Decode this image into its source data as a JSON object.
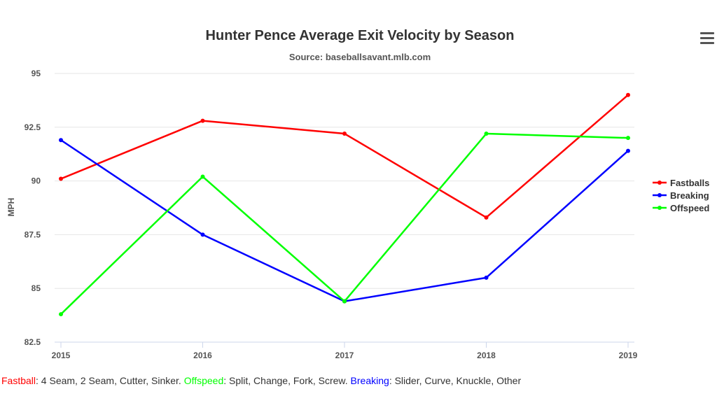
{
  "chart_data": {
    "type": "line",
    "title": "Hunter Pence Average Exit Velocity by Season",
    "subtitle": "Source: baseballsavant.mlb.com",
    "xlabel": "",
    "ylabel": "MPH",
    "categories": [
      "2015",
      "2016",
      "2017",
      "2018",
      "2019"
    ],
    "ylim": [
      82.5,
      95
    ],
    "yticks": [
      82.5,
      85,
      87.5,
      90,
      92.5,
      95
    ],
    "ytick_labels": [
      "82.5",
      "85",
      "87.5",
      "90",
      "92.5",
      "95"
    ],
    "grid": true,
    "legend_position": "right",
    "series": [
      {
        "name": "Fastballs",
        "color": "#ff0000",
        "values": [
          90.1,
          92.8,
          92.2,
          88.3,
          94.0
        ]
      },
      {
        "name": "Breaking",
        "color": "#0000ff",
        "values": [
          91.9,
          87.5,
          84.4,
          85.5,
          91.4
        ]
      },
      {
        "name": "Offspeed",
        "color": "#00ff00",
        "values": [
          83.8,
          90.2,
          84.4,
          92.2,
          92.0
        ]
      }
    ]
  },
  "menu_icon": "hamburger-menu-icon",
  "footnote": {
    "fastball_label": "Fastball",
    "fastball_desc": ": 4 Seam, 2 Seam, Cutter, Sinker. ",
    "offspeed_label": "Offspeed",
    "offspeed_desc": ": Split, Change, Fork, Screw. ",
    "breaking_label": "Breaking",
    "breaking_desc": ": Slider, Curve, Knuckle, Other",
    "colors": {
      "fastball": "#ff0000",
      "offspeed": "#00ff00",
      "breaking": "#0000ff"
    }
  }
}
